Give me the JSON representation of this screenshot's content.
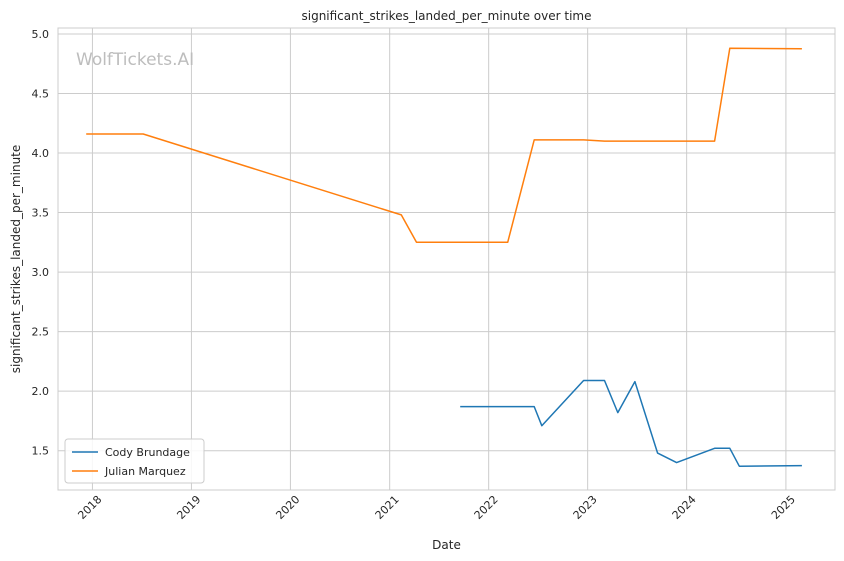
{
  "chart_data": {
    "type": "line",
    "title": "significant_strikes_landed_per_minute over time",
    "xlabel": "Date",
    "ylabel": "significant_strikes_landed_per_minute",
    "watermark": "WolfTickets.AI",
    "x_ticks": [
      "2018",
      "2019",
      "2020",
      "2021",
      "2022",
      "2023",
      "2024",
      "2025"
    ],
    "y_ticks": [
      "1.5",
      "2.0",
      "2.5",
      "3.0",
      "3.5",
      "4.0",
      "4.5",
      "5.0"
    ],
    "xlim": [
      "2017-08-27",
      "2025-07-01"
    ],
    "ylim": [
      1.17,
      5.05
    ],
    "grid": true,
    "legend_position": "lower-left",
    "series": [
      {
        "name": "Cody Brundage",
        "color": "#1f77b4",
        "points": [
          [
            "2021-09-18",
            1.87
          ],
          [
            "2022-06-18",
            1.87
          ],
          [
            "2022-07-16",
            1.71
          ],
          [
            "2022-12-17",
            2.09
          ],
          [
            "2023-03-04",
            2.09
          ],
          [
            "2023-04-22",
            1.82
          ],
          [
            "2023-06-24",
            2.08
          ],
          [
            "2023-09-16",
            1.48
          ],
          [
            "2023-11-25",
            1.4
          ],
          [
            "2024-04-13",
            1.52
          ],
          [
            "2024-06-08",
            1.52
          ],
          [
            "2024-07-13",
            1.37
          ],
          [
            "2025-03-01",
            1.375
          ]
        ]
      },
      {
        "name": "Julian Marquez",
        "color": "#ff7f0e",
        "points": [
          [
            "2017-12-09",
            4.16
          ],
          [
            "2018-07-07",
            4.16
          ],
          [
            "2021-02-13",
            3.48
          ],
          [
            "2021-04-10",
            3.25
          ],
          [
            "2022-03-12",
            3.25
          ],
          [
            "2022-06-18",
            4.11
          ],
          [
            "2022-12-17",
            4.11
          ],
          [
            "2023-03-04",
            4.1
          ],
          [
            "2024-04-13",
            4.1
          ],
          [
            "2024-06-08",
            4.88
          ],
          [
            "2025-03-01",
            4.875
          ]
        ]
      }
    ]
  }
}
